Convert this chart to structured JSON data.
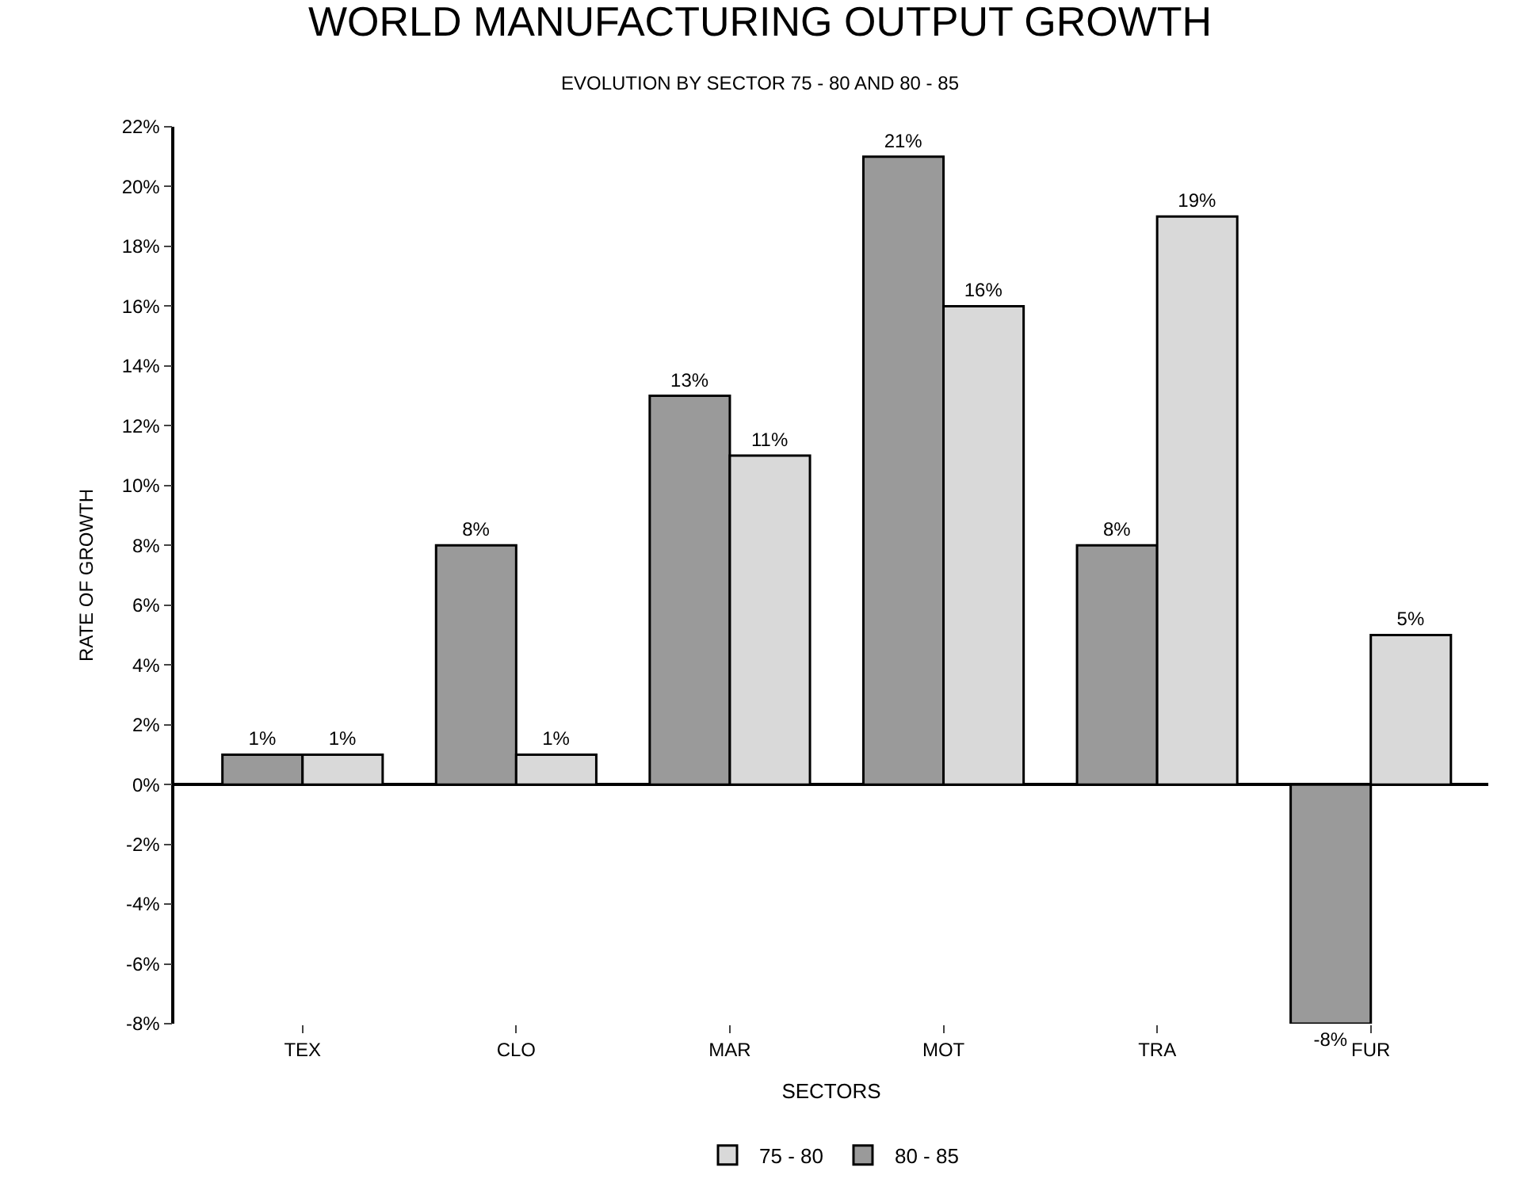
{
  "chart_data": {
    "type": "bar",
    "title": "WORLD MANUFACTURING OUTPUT GROWTH",
    "subtitle": "EVOLUTION BY SECTOR 75 - 80 AND 80 - 85",
    "xlabel": "SECTORS",
    "ylabel": "RATE OF GROWTH",
    "categories": [
      "TEX",
      "CLO",
      "MAR",
      "MOT",
      "TRA",
      "FUR"
    ],
    "series": [
      {
        "name": "80 - 85",
        "color": "#9a9a9a",
        "values": [
          1,
          8,
          13,
          21,
          8,
          -8
        ],
        "value_labels": [
          "1%",
          "8%",
          "13%",
          "21%",
          "8%",
          "-8%"
        ]
      },
      {
        "name": "75 - 80",
        "color": "#d9d9d9",
        "values": [
          1,
          1,
          11,
          16,
          19,
          5
        ],
        "value_labels": [
          "1%",
          "1%",
          "11%",
          "16%",
          "19%",
          "5%"
        ]
      }
    ],
    "ylim": [
      -8,
      22
    ],
    "yticks": [
      {
        "value": -8,
        "label": "-8%"
      },
      {
        "value": -6,
        "label": "-6%"
      },
      {
        "value": -4,
        "label": "-4%"
      },
      {
        "value": -2,
        "label": "-2%"
      },
      {
        "value": 0,
        "label": "0%"
      },
      {
        "value": 2,
        "label": "2%"
      },
      {
        "value": 4,
        "label": "4%"
      },
      {
        "value": 6,
        "label": "6%"
      },
      {
        "value": 8,
        "label": "8%"
      },
      {
        "value": 10,
        "label": "10%"
      },
      {
        "value": 12,
        "label": "12%"
      },
      {
        "value": 14,
        "label": "14%"
      },
      {
        "value": 16,
        "label": "16%"
      },
      {
        "value": 18,
        "label": "18%"
      },
      {
        "value": 20,
        "label": "20%"
      },
      {
        "value": 22,
        "label": "22%"
      }
    ],
    "legend": "bottom"
  }
}
